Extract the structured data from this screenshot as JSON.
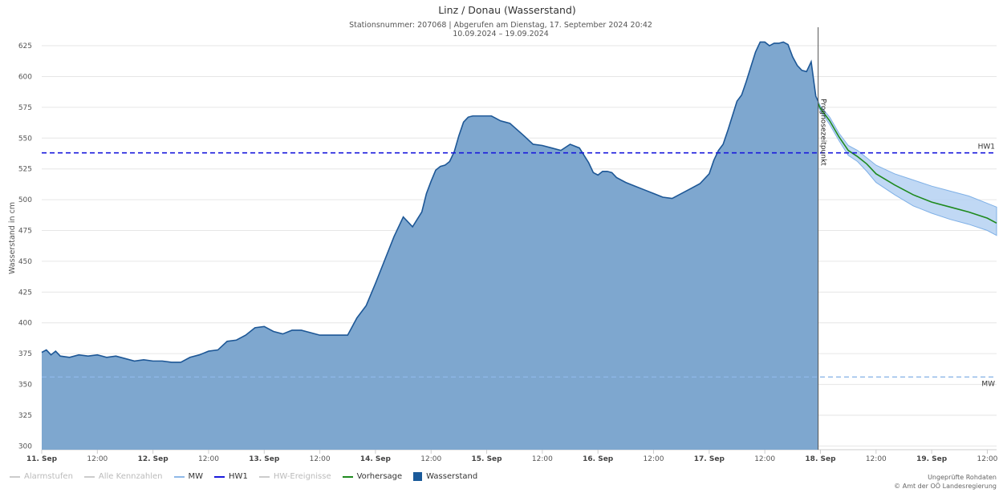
{
  "chart_data": {
    "type": "area",
    "title": "Linz / Donau (Wasserstand)",
    "subtitle_line1": "Stationsnummer: 207068 | Abgerufen am Dienstag, 17. September 2024 20:42",
    "subtitle_line2": "10.09.2024 – 19.09.2024",
    "ylabel": "Wasserstand in cm",
    "ylim": [
      297,
      640
    ],
    "y_ticks": [
      300,
      325,
      350,
      375,
      400,
      425,
      450,
      475,
      500,
      525,
      550,
      575,
      600,
      625
    ],
    "x_unit": "hours since 11 Sep 00:00",
    "xlim": [
      0,
      206
    ],
    "x_ticks": [
      {
        "x": 0,
        "label": "11. Sep",
        "bold": true
      },
      {
        "x": 12,
        "label": "12:00",
        "bold": false
      },
      {
        "x": 24,
        "label": "12. Sep",
        "bold": true
      },
      {
        "x": 36,
        "label": "12:00",
        "bold": false
      },
      {
        "x": 48,
        "label": "13. Sep",
        "bold": true
      },
      {
        "x": 60,
        "label": "12:00",
        "bold": false
      },
      {
        "x": 72,
        "label": "14. Sep",
        "bold": true
      },
      {
        "x": 84,
        "label": "12:00",
        "bold": false
      },
      {
        "x": 96,
        "label": "15. Sep",
        "bold": true
      },
      {
        "x": 108,
        "label": "12:00",
        "bold": false
      },
      {
        "x": 120,
        "label": "16. Sep",
        "bold": true
      },
      {
        "x": 132,
        "label": "12:00",
        "bold": false
      },
      {
        "x": 144,
        "label": "17. Sep",
        "bold": true
      },
      {
        "x": 156,
        "label": "12:00",
        "bold": false
      },
      {
        "x": 168,
        "label": "18. Sep",
        "bold": true
      },
      {
        "x": 180,
        "label": "12:00",
        "bold": false
      },
      {
        "x": 192,
        "label": "19. Sep",
        "bold": true
      },
      {
        "x": 204,
        "label": "12:00",
        "bold": false
      }
    ],
    "reference_lines": [
      {
        "name": "HW1",
        "value": 538,
        "color": "#1a1adc",
        "style": "dashed"
      },
      {
        "name": "MW",
        "value": 356,
        "color": "#8fb8e8",
        "style": "dashed"
      }
    ],
    "forecast_point": {
      "x": 167.5,
      "label": "Prognosezeitpunkt"
    },
    "series": [
      {
        "name": "Wasserstand",
        "color": "#3a6ea5",
        "fill": "#7ea7cf",
        "x": [
          0,
          1,
          2,
          3,
          4,
          6,
          8,
          10,
          12,
          14,
          16,
          18,
          20,
          22,
          24,
          26,
          28,
          30,
          32,
          34,
          36,
          38,
          40,
          42,
          44,
          46,
          48,
          50,
          52,
          54,
          56,
          58,
          60,
          62,
          64,
          66,
          68,
          70,
          72,
          74,
          76,
          78,
          80,
          82,
          83,
          84,
          85,
          86,
          87,
          88,
          89,
          90,
          91,
          92,
          93,
          94,
          95,
          96,
          97,
          98,
          99,
          100,
          101,
          104,
          106,
          108,
          110,
          112,
          114,
          116,
          118,
          119,
          120,
          121,
          122,
          123,
          124,
          126,
          128,
          130,
          132,
          134,
          136,
          138,
          140,
          142,
          144,
          145,
          146,
          147,
          148,
          149,
          150,
          151,
          152,
          153,
          154,
          155,
          156,
          157,
          158,
          159,
          160,
          161,
          162,
          163,
          164,
          165,
          166,
          167,
          167.5
        ],
        "values": [
          376,
          378,
          374,
          377,
          373,
          372,
          374,
          373,
          374,
          372,
          373,
          371,
          369,
          370,
          369,
          369,
          368,
          368,
          372,
          374,
          377,
          378,
          385,
          386,
          390,
          396,
          397,
          393,
          391,
          394,
          394,
          392,
          390,
          390,
          390,
          390,
          404,
          414,
          432,
          451,
          470,
          486,
          478,
          490,
          505,
          515,
          524,
          527,
          528,
          531,
          539,
          552,
          563,
          567,
          568,
          568,
          568,
          568,
          568,
          566,
          564,
          563,
          562,
          552,
          545,
          544,
          542,
          540,
          545,
          542,
          530,
          522,
          520,
          523,
          523,
          522,
          518,
          514,
          511,
          508,
          505,
          502,
          501,
          505,
          509,
          513,
          521,
          532,
          540,
          545,
          556,
          568,
          580,
          585,
          596,
          608,
          620,
          628,
          628,
          625,
          627,
          627,
          628,
          626,
          616,
          609,
          605,
          604,
          612,
          584,
          580
        ]
      },
      {
        "name": "Vorhersage",
        "color": "#1e8a1e",
        "x": [
          167.5,
          168,
          170,
          172,
          174,
          176,
          178,
          180,
          184,
          188,
          192,
          196,
          200,
          204,
          206
        ],
        "values": [
          578,
          574,
          564,
          551,
          540,
          535,
          529,
          521,
          512,
          504,
          498,
          494,
          490,
          485,
          481
        ]
      },
      {
        "name": "Vorhersage-Bereich",
        "color": "#b5d1f2",
        "x": [
          167.5,
          168,
          170,
          172,
          174,
          176,
          178,
          180,
          184,
          188,
          192,
          196,
          200,
          204,
          206
        ],
        "upper": [
          580,
          576,
          567,
          554,
          544,
          540,
          534,
          528,
          521,
          516,
          511,
          507,
          503,
          497,
          494
        ],
        "lower": [
          576,
          572,
          561,
          548,
          536,
          531,
          523,
          514,
          504,
          495,
          489,
          484,
          480,
          475,
          471
        ]
      }
    ]
  },
  "legend": {
    "items": [
      {
        "label": "Alarmstufen",
        "color": "#cccccc",
        "kind": "line",
        "enabled": false
      },
      {
        "label": "Alle Kennzahlen",
        "color": "#cccccc",
        "kind": "line",
        "enabled": false
      },
      {
        "label": "MW",
        "color": "#8fb8e8",
        "kind": "line",
        "enabled": true
      },
      {
        "label": "HW1",
        "color": "#1a1adc",
        "kind": "line",
        "enabled": true
      },
      {
        "label": "HW-Ereignisse",
        "color": "#cccccc",
        "kind": "line",
        "enabled": false
      },
      {
        "label": "Vorhersage",
        "color": "#1e8a1e",
        "kind": "line",
        "enabled": true
      },
      {
        "label": "Wasserstand",
        "color": "#1a5a9a",
        "kind": "box",
        "enabled": true
      }
    ]
  },
  "credits": {
    "line1": "Ungeprüfte Rohdaten",
    "line2": "© Amt der OÖ Landesregierung"
  }
}
